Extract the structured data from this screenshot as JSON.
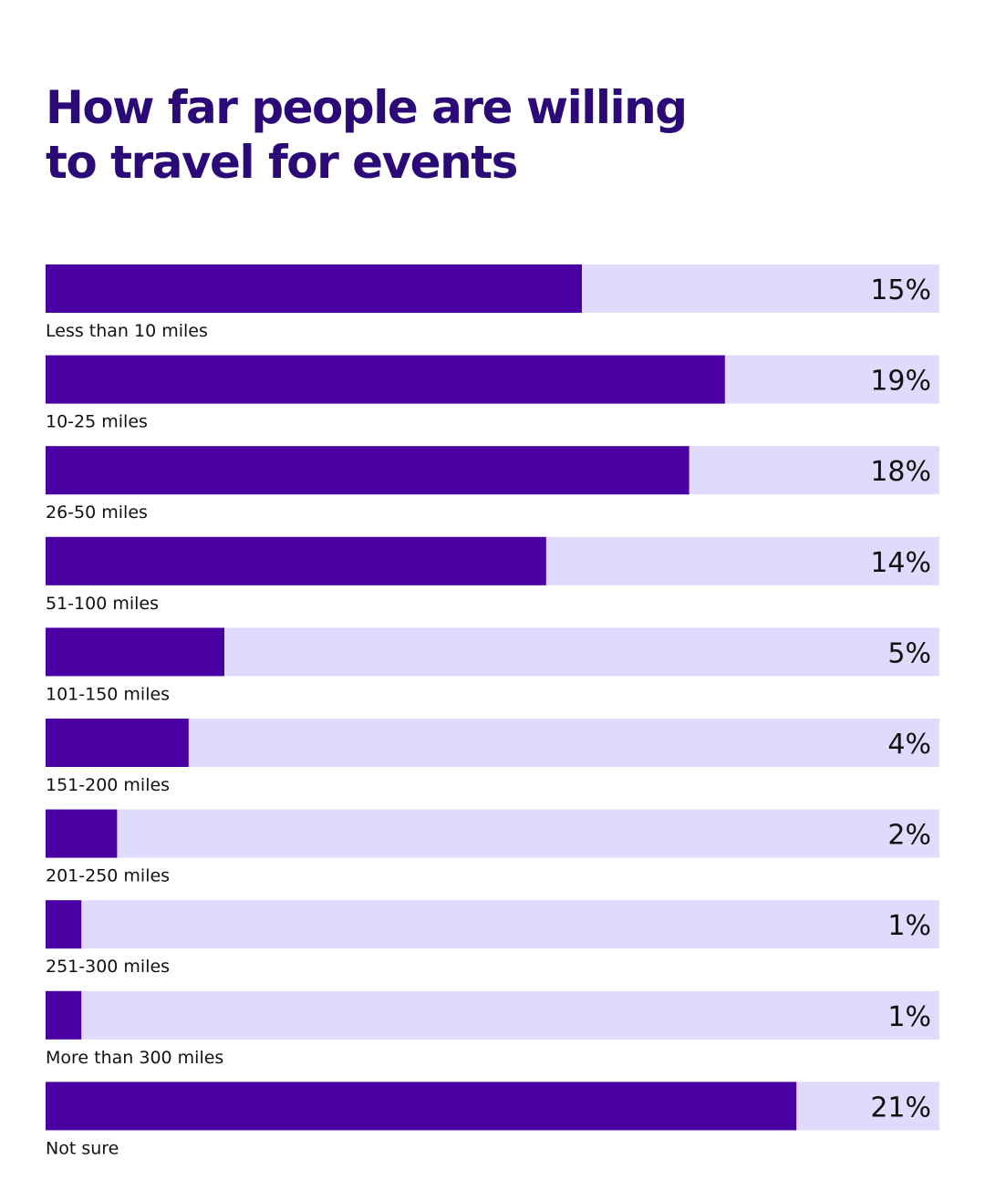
{
  "chart_data": {
    "type": "bar",
    "orientation": "horizontal",
    "title_lines": [
      "How far people are willing",
      "to travel for events"
    ],
    "categories": [
      "Less than 10 miles",
      "10-25 miles",
      "26-50 miles",
      "51-100 miles",
      "101-150 miles",
      "151-200 miles",
      "201-250 miles",
      "251-300 miles",
      "More than 300 miles",
      "Not sure"
    ],
    "values": [
      15,
      19,
      18,
      14,
      5,
      4,
      2,
      1,
      1,
      21
    ],
    "value_labels": [
      "15%",
      "19%",
      "18%",
      "14%",
      "5%",
      "4%",
      "2%",
      "1%",
      "1%",
      "21%"
    ],
    "xlim": [
      0,
      25
    ],
    "unit": "%",
    "grid": false,
    "legend": "none",
    "colors": {
      "bar": "#4a00a3",
      "track": "#e0dbfc",
      "title": "#2b0a78",
      "text": "#111111"
    }
  }
}
